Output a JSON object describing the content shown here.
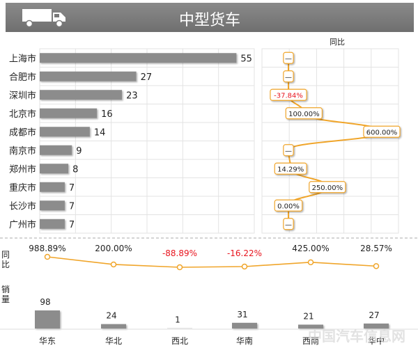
{
  "header": {
    "title": "中型货车",
    "icon": "truck-icon"
  },
  "colors": {
    "bar": "#8c8c8c",
    "line": "#f0a52a",
    "negative": "#e8141e",
    "text": "#222222",
    "grid": "#e3e3e3"
  },
  "watermark": "中国汽车信息网",
  "chart_data": [
    {
      "type": "bar",
      "orientation": "horizontal",
      "categories": [
        "上海市",
        "合肥市",
        "深圳市",
        "北京市",
        "成都市",
        "南京市",
        "郑州市",
        "重庆市",
        "长沙市",
        "广州市"
      ],
      "values": [
        55,
        27,
        23,
        16,
        14,
        9,
        8,
        7,
        7,
        7
      ],
      "xlim": [
        0,
        60
      ],
      "grid": true
    },
    {
      "type": "line",
      "title": "同比",
      "categories": [
        "上海市",
        "合肥市",
        "深圳市",
        "北京市",
        "成都市",
        "南京市",
        "郑州市",
        "重庆市",
        "长沙市",
        "广州市"
      ],
      "labels": [
        "—",
        "—",
        "-37.84%",
        "100.00%",
        "600.00%",
        "—",
        "14.29%",
        "250.00%",
        "0.00%",
        "—"
      ],
      "values": [
        null,
        null,
        -37.84,
        100.0,
        600.0,
        null,
        14.29,
        250.0,
        0.0,
        null
      ],
      "grid": true
    },
    {
      "type": "line",
      "ylabel": "同比",
      "categories": [
        "华东",
        "华北",
        "西北",
        "华南",
        "西南",
        "华中"
      ],
      "labels": [
        "988.89%",
        "200.00%",
        "-88.89%",
        "-16.22%",
        "425.00%",
        "28.57%"
      ],
      "values": [
        988.89,
        200.0,
        -88.89,
        -16.22,
        425.0,
        28.57
      ]
    },
    {
      "type": "bar",
      "ylabel": "销量",
      "categories": [
        "华东",
        "华北",
        "西北",
        "华南",
        "西南",
        "华中"
      ],
      "values": [
        98,
        24,
        1,
        31,
        21,
        27
      ]
    }
  ]
}
